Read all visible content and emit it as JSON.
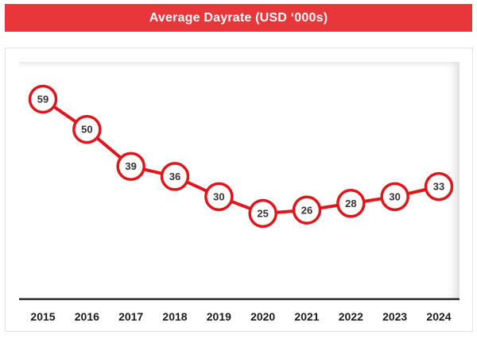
{
  "header": {
    "title": "Average Dayrate (USD ‘000s)",
    "background": "#e8363b",
    "text_color": "#ffffff"
  },
  "chart_data": {
    "type": "line",
    "title": "Average Dayrate (USD ‘000s)",
    "xlabel": "",
    "ylabel": "",
    "categories": [
      "2015",
      "2016",
      "2017",
      "2018",
      "2019",
      "2020",
      "2021",
      "2022",
      "2023",
      "2024"
    ],
    "series": [
      {
        "values": [
          59,
          50,
          39,
          36,
          30,
          25,
          26,
          28,
          30,
          33
        ]
      }
    ],
    "ylim": [
      0,
      65
    ],
    "grid": false,
    "legend": "none",
    "data_labels": true,
    "line_color": "#e0161d",
    "marker_fill": "#ffffff",
    "axis_color": "#222222"
  }
}
